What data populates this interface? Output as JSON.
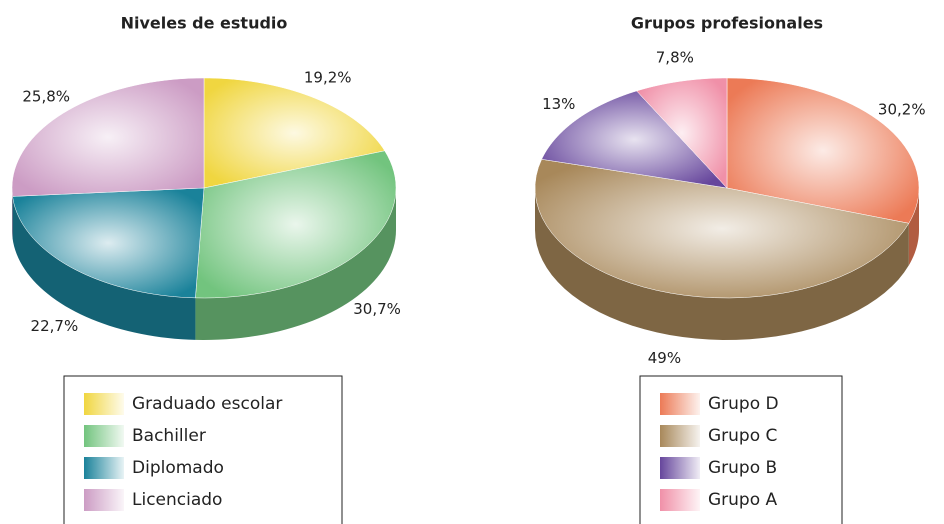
{
  "chart_data": [
    {
      "type": "pie",
      "title": "Niveles de estudio",
      "categories": [
        "Graduado escolar",
        "Bachiller",
        "Diplomado",
        "Licenciado"
      ],
      "values": [
        19.2,
        30.7,
        22.7,
        25.8
      ],
      "value_labels": [
        "19,2%",
        "30,7%",
        "22,7%",
        "25,8%"
      ],
      "colors": [
        "#f0d640",
        "#72c47e",
        "#1a829a",
        "#cc9cc4"
      ]
    },
    {
      "type": "pie",
      "title": "Grupos profesionales",
      "categories": [
        "Grupo D",
        "Grupo C",
        "Grupo B",
        "Grupo A"
      ],
      "values": [
        30.2,
        49,
        13,
        7.8
      ],
      "value_labels": [
        "30,2%",
        "49%",
        "13%",
        "7,8%"
      ],
      "colors": [
        "#ec7a56",
        "#a8885a",
        "#66469c",
        "#f090a8"
      ]
    }
  ]
}
